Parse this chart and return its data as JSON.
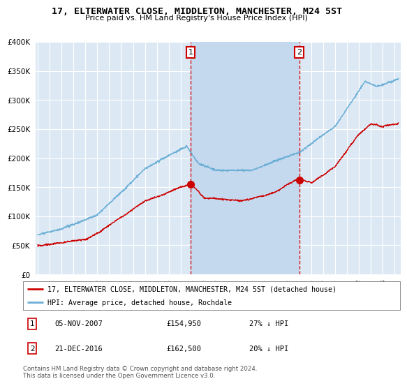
{
  "title": "17, ELTERWATER CLOSE, MIDDLETON, MANCHESTER, M24 5ST",
  "subtitle": "Price paid vs. HM Land Registry's House Price Index (HPI)",
  "red_label": "17, ELTERWATER CLOSE, MIDDLETON, MANCHESTER, M24 5ST (detached house)",
  "blue_label": "HPI: Average price, detached house, Rochdale",
  "annotation1_date": "05-NOV-2007",
  "annotation1_price": "£154,950",
  "annotation1_pct": "27% ↓ HPI",
  "annotation1_year": 2007.85,
  "annotation2_date": "21-DEC-2016",
  "annotation2_price": "£162,500",
  "annotation2_pct": "20% ↓ HPI",
  "annotation2_year": 2016.97,
  "footer": "Contains HM Land Registry data © Crown copyright and database right 2024.\nThis data is licensed under the Open Government Licence v3.0.",
  "ylim": [
    0,
    400000
  ],
  "xlim_start": 1994.8,
  "xlim_end": 2025.5,
  "yticks": [
    0,
    50000,
    100000,
    150000,
    200000,
    250000,
    300000,
    350000,
    400000
  ],
  "xticks": [
    1995,
    1996,
    1997,
    1998,
    1999,
    2000,
    2001,
    2002,
    2003,
    2004,
    2005,
    2006,
    2007,
    2008,
    2009,
    2010,
    2011,
    2012,
    2013,
    2014,
    2015,
    2016,
    2017,
    2018,
    2019,
    2020,
    2021,
    2022,
    2023,
    2024,
    2025
  ],
  "plot_bg_color": "#dce9f5",
  "shade_color": "#c5d9ee",
  "red_color": "#cc0000",
  "blue_color": "#6baed6",
  "vline_color": "#cc0000",
  "annotation_border_color": "#cc0000",
  "grid_color": "#ffffff"
}
